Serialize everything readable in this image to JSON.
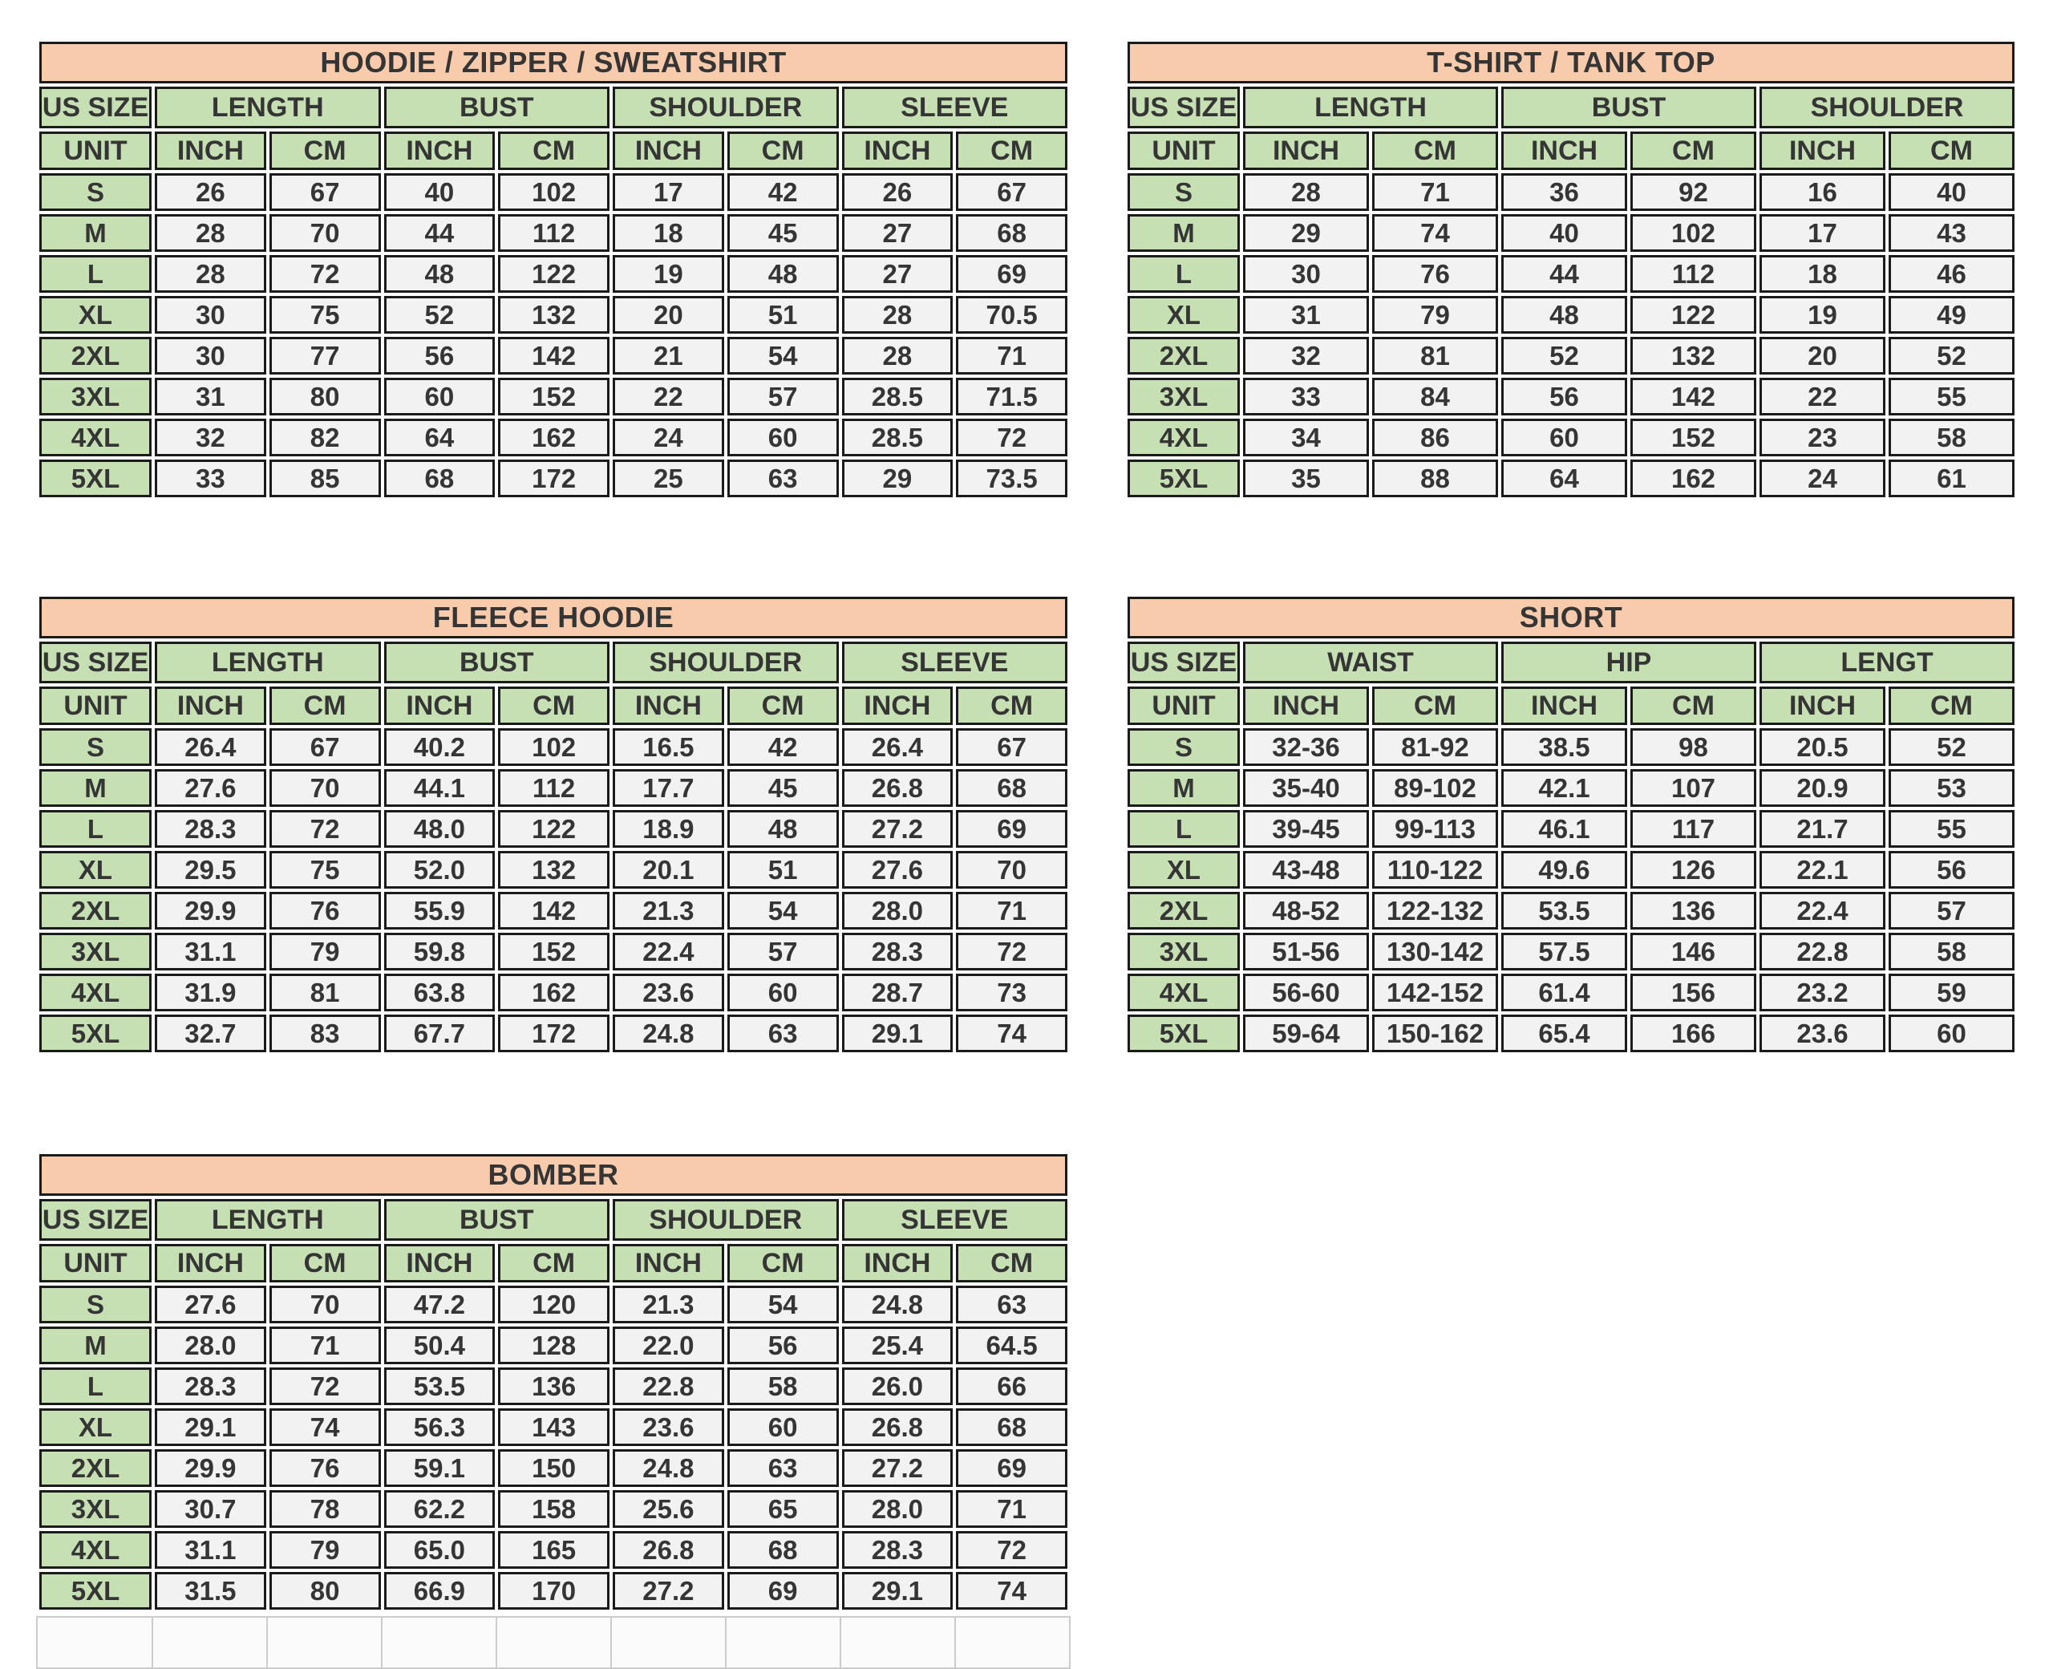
{
  "colors": {
    "title_bg": "#F8CBAD",
    "header_bg": "#C6E0B4",
    "cell_bg": "#F2F2F2",
    "border": "#1B1B1B",
    "text": "#353535"
  },
  "labels": {
    "us_size": "US SIZE",
    "unit": "UNIT",
    "inch": "INCH",
    "cm": "CM"
  },
  "tables": [
    {
      "id": "hoodie-zipper-sweatshirt",
      "title": "HOODIE / ZIPPER / SWEATSHIRT",
      "groups": [
        "LENGTH",
        "BUST",
        "SHOULDER",
        "SLEEVE"
      ],
      "rows": [
        {
          "size": "S",
          "values": [
            "26",
            "67",
            "40",
            "102",
            "17",
            "42",
            "26",
            "67"
          ]
        },
        {
          "size": "M",
          "values": [
            "28",
            "70",
            "44",
            "112",
            "18",
            "45",
            "27",
            "68"
          ]
        },
        {
          "size": "L",
          "values": [
            "28",
            "72",
            "48",
            "122",
            "19",
            "48",
            "27",
            "69"
          ]
        },
        {
          "size": "XL",
          "values": [
            "30",
            "75",
            "52",
            "132",
            "20",
            "51",
            "28",
            "70.5"
          ]
        },
        {
          "size": "2XL",
          "values": [
            "30",
            "77",
            "56",
            "142",
            "21",
            "54",
            "28",
            "71"
          ]
        },
        {
          "size": "3XL",
          "values": [
            "31",
            "80",
            "60",
            "152",
            "22",
            "57",
            "28.5",
            "71.5"
          ]
        },
        {
          "size": "4XL",
          "values": [
            "32",
            "82",
            "64",
            "162",
            "24",
            "60",
            "28.5",
            "72"
          ]
        },
        {
          "size": "5XL",
          "values": [
            "33",
            "85",
            "68",
            "172",
            "25",
            "63",
            "29",
            "73.5"
          ]
        }
      ]
    },
    {
      "id": "t-shirt-tank-top",
      "title": "T-SHIRT / TANK TOP",
      "groups": [
        "LENGTH",
        "BUST",
        "SHOULDER"
      ],
      "rows": [
        {
          "size": "S",
          "values": [
            "28",
            "71",
            "36",
            "92",
            "16",
            "40"
          ]
        },
        {
          "size": "M",
          "values": [
            "29",
            "74",
            "40",
            "102",
            "17",
            "43"
          ]
        },
        {
          "size": "L",
          "values": [
            "30",
            "76",
            "44",
            "112",
            "18",
            "46"
          ]
        },
        {
          "size": "XL",
          "values": [
            "31",
            "79",
            "48",
            "122",
            "19",
            "49"
          ]
        },
        {
          "size": "2XL",
          "values": [
            "32",
            "81",
            "52",
            "132",
            "20",
            "52"
          ]
        },
        {
          "size": "3XL",
          "values": [
            "33",
            "84",
            "56",
            "142",
            "22",
            "55"
          ]
        },
        {
          "size": "4XL",
          "values": [
            "34",
            "86",
            "60",
            "152",
            "23",
            "58"
          ]
        },
        {
          "size": "5XL",
          "values": [
            "35",
            "88",
            "64",
            "162",
            "24",
            "61"
          ]
        }
      ]
    },
    {
      "id": "fleece-hoodie",
      "title": "FLEECE HOODIE",
      "groups": [
        "LENGTH",
        "BUST",
        "SHOULDER",
        "SLEEVE"
      ],
      "rows": [
        {
          "size": "S",
          "values": [
            "26.4",
            "67",
            "40.2",
            "102",
            "16.5",
            "42",
            "26.4",
            "67"
          ]
        },
        {
          "size": "M",
          "values": [
            "27.6",
            "70",
            "44.1",
            "112",
            "17.7",
            "45",
            "26.8",
            "68"
          ]
        },
        {
          "size": "L",
          "values": [
            "28.3",
            "72",
            "48.0",
            "122",
            "18.9",
            "48",
            "27.2",
            "69"
          ]
        },
        {
          "size": "XL",
          "values": [
            "29.5",
            "75",
            "52.0",
            "132",
            "20.1",
            "51",
            "27.6",
            "70"
          ]
        },
        {
          "size": "2XL",
          "values": [
            "29.9",
            "76",
            "55.9",
            "142",
            "21.3",
            "54",
            "28.0",
            "71"
          ]
        },
        {
          "size": "3XL",
          "values": [
            "31.1",
            "79",
            "59.8",
            "152",
            "22.4",
            "57",
            "28.3",
            "72"
          ]
        },
        {
          "size": "4XL",
          "values": [
            "31.9",
            "81",
            "63.8",
            "162",
            "23.6",
            "60",
            "28.7",
            "73"
          ]
        },
        {
          "size": "5XL",
          "values": [
            "32.7",
            "83",
            "67.7",
            "172",
            "24.8",
            "63",
            "29.1",
            "74"
          ]
        }
      ]
    },
    {
      "id": "short",
      "title": "SHORT",
      "groups": [
        "WAIST",
        "HIP",
        "LENGT"
      ],
      "rows": [
        {
          "size": "S",
          "values": [
            "32-36",
            "81-92",
            "38.5",
            "98",
            "20.5",
            "52"
          ]
        },
        {
          "size": "M",
          "values": [
            "35-40",
            "89-102",
            "42.1",
            "107",
            "20.9",
            "53"
          ]
        },
        {
          "size": "L",
          "values": [
            "39-45",
            "99-113",
            "46.1",
            "117",
            "21.7",
            "55"
          ]
        },
        {
          "size": "XL",
          "values": [
            "43-48",
            "110-122",
            "49.6",
            "126",
            "22.1",
            "56"
          ]
        },
        {
          "size": "2XL",
          "values": [
            "48-52",
            "122-132",
            "53.5",
            "136",
            "22.4",
            "57"
          ]
        },
        {
          "size": "3XL",
          "values": [
            "51-56",
            "130-142",
            "57.5",
            "146",
            "22.8",
            "58"
          ]
        },
        {
          "size": "4XL",
          "values": [
            "56-60",
            "142-152",
            "61.4",
            "156",
            "23.2",
            "59"
          ]
        },
        {
          "size": "5XL",
          "values": [
            "59-64",
            "150-162",
            "65.4",
            "166",
            "23.6",
            "60"
          ]
        }
      ]
    },
    {
      "id": "bomber",
      "title": "BOMBER",
      "groups": [
        "LENGTH",
        "BUST",
        "SHOULDER",
        "SLEEVE"
      ],
      "rows": [
        {
          "size": "S",
          "values": [
            "27.6",
            "70",
            "47.2",
            "120",
            "21.3",
            "54",
            "24.8",
            "63"
          ]
        },
        {
          "size": "M",
          "values": [
            "28.0",
            "71",
            "50.4",
            "128",
            "22.0",
            "56",
            "25.4",
            "64.5"
          ]
        },
        {
          "size": "L",
          "values": [
            "28.3",
            "72",
            "53.5",
            "136",
            "22.8",
            "58",
            "26.0",
            "66"
          ]
        },
        {
          "size": "XL",
          "values": [
            "29.1",
            "74",
            "56.3",
            "143",
            "23.6",
            "60",
            "26.8",
            "68"
          ]
        },
        {
          "size": "2XL",
          "values": [
            "29.9",
            "76",
            "59.1",
            "150",
            "24.8",
            "63",
            "27.2",
            "69"
          ]
        },
        {
          "size": "3XL",
          "values": [
            "30.7",
            "78",
            "62.2",
            "158",
            "25.6",
            "65",
            "28.0",
            "71"
          ]
        },
        {
          "size": "4XL",
          "values": [
            "31.1",
            "79",
            "65.0",
            "165",
            "26.8",
            "68",
            "28.3",
            "72"
          ]
        },
        {
          "size": "5XL",
          "values": [
            "31.5",
            "80",
            "66.9",
            "170",
            "27.2",
            "69",
            "29.1",
            "74"
          ]
        }
      ]
    }
  ]
}
